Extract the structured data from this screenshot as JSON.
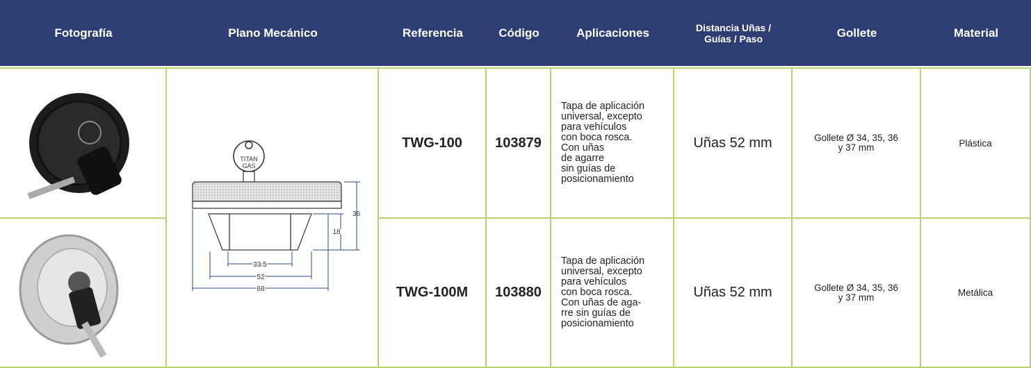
{
  "header": [
    "Fotografía",
    "Plano Mecánico",
    "Referencia",
    "Código",
    "Aplicaciones",
    [
      "Distancia Uñas /",
      "Guías / Paso"
    ],
    "Gollete",
    "Material"
  ],
  "rows": [
    {
      "reference": "TWG-100",
      "code": "103879",
      "applications": [
        "Tapa de aplicación",
        "universal, excepto",
        "para vehículos",
        "con boca rosca.",
        "Con uñas",
        "de agarre",
        "sin guías de",
        "posicionamiento"
      ],
      "distance": "Uñas 52 mm",
      "gollete": [
        "Gollete Ø 34, 35, 36",
        "y 37 mm"
      ],
      "material": "Plástica"
    },
    {
      "reference": "TWG-100M",
      "code": "103880",
      "applications": [
        "Tapa de aplicación",
        "universal, excepto",
        "para vehículos",
        "con boca rosca.",
        "Con uñas de aga-",
        "rre sin guías de",
        "posicionamiento"
      ],
      "distance": "Uñas 52 mm",
      "gollete": [
        "Gollete Ø 34, 35, 36",
        "y 37 mm"
      ],
      "material": "Metálica"
    }
  ],
  "drawing": {
    "brand": [
      "TITAN",
      "GAS"
    ],
    "height_total": "36",
    "height_body": "18",
    "width_inner": "33.5",
    "width_claws": "52",
    "width_outer": "68"
  }
}
